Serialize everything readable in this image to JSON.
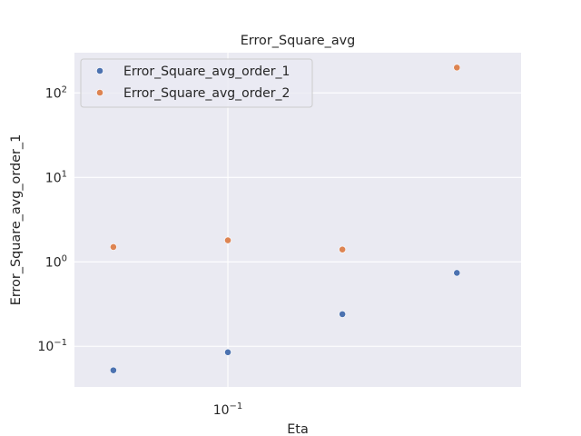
{
  "chart_data": {
    "type": "scatter",
    "title": "Error_Square_avg",
    "xlabel": "Eta",
    "ylabel": "Error_Square_avg_order_1",
    "x_scale": "log",
    "y_scale": "log",
    "xlim": [
      0.0395,
      0.59
    ],
    "ylim": [
      0.033,
      300
    ],
    "grid": true,
    "legend_position": "upper left",
    "x_ticks": [
      {
        "value": 0.1,
        "label": "10⁻¹"
      }
    ],
    "y_ticks": [
      {
        "value": 0.1,
        "label": "10⁻¹"
      },
      {
        "value": 1,
        "label": "10⁰"
      },
      {
        "value": 10,
        "label": "10¹"
      },
      {
        "value": 100,
        "label": "10²"
      }
    ],
    "series": [
      {
        "name": "Error_Square_avg_order_1",
        "color": "#4c72b0",
        "points": [
          {
            "x": 0.05,
            "y": 0.052
          },
          {
            "x": 0.1,
            "y": 0.085
          },
          {
            "x": 0.2,
            "y": 0.24
          },
          {
            "x": 0.4,
            "y": 0.74
          }
        ]
      },
      {
        "name": "Error_Square_avg_order_2",
        "color": "#dd8452",
        "points": [
          {
            "x": 0.05,
            "y": 1.5
          },
          {
            "x": 0.1,
            "y": 1.8
          },
          {
            "x": 0.2,
            "y": 1.4
          },
          {
            "x": 0.4,
            "y": 200
          }
        ]
      }
    ]
  }
}
